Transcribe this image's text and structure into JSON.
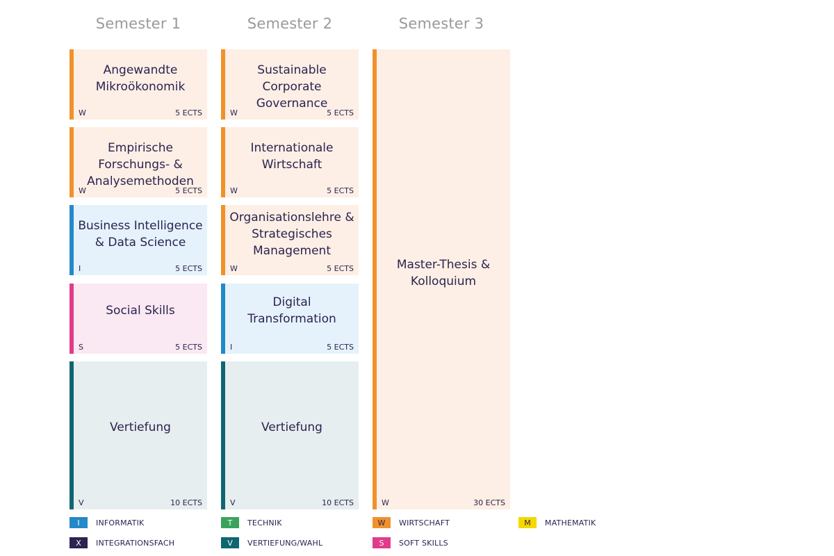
{
  "semesters": [
    "Semester 1",
    "Semester 2",
    "Semester 3"
  ],
  "category_colors": {
    "W": {
      "bar": "#f0922b",
      "bg": "#fdefe5"
    },
    "I": {
      "bar": "#2389c8",
      "bg": "#e5f2fb"
    },
    "S": {
      "bar": "#e03c8a",
      "bg": "#fae8f2"
    },
    "V": {
      "bar": "#0f6670",
      "bg": "#e7eeef"
    }
  },
  "modules": [
    {
      "semester": 1,
      "title": "Angewandte Mikroökonomik",
      "code": "W",
      "ects": "5 ECTS"
    },
    {
      "semester": 1,
      "title": "Empirische Forschungs- & Analysemethoden",
      "code": "W",
      "ects": "5 ECTS"
    },
    {
      "semester": 1,
      "title": "Business Intelligence & Data Science",
      "code": "I",
      "ects": "5 ECTS"
    },
    {
      "semester": 1,
      "title": "Social Skills",
      "code": "S",
      "ects": "5 ECTS"
    },
    {
      "semester": 1,
      "title": "Vertiefung",
      "code": "V",
      "ects": "10 ECTS"
    },
    {
      "semester": 2,
      "title": "Sustainable Corporate Governance",
      "code": "W",
      "ects": "5 ECTS"
    },
    {
      "semester": 2,
      "title": "Internationale Wirtschaft",
      "code": "W",
      "ects": "5 ECTS"
    },
    {
      "semester": 2,
      "title": "Organisationslehre & Strategisches Management",
      "code": "W",
      "ects": "5 ECTS"
    },
    {
      "semester": 2,
      "title": "Digital Transformation",
      "code": "I",
      "ects": "5 ECTS"
    },
    {
      "semester": 2,
      "title": "Vertiefung",
      "code": "V",
      "ects": "10 ECTS"
    },
    {
      "semester": 3,
      "title": "Master-Thesis & Kolloquium",
      "code": "W",
      "ects": "30 ECTS"
    }
  ],
  "legend": [
    {
      "code": "I",
      "label": "INFORMATIK",
      "color": "#2389c8",
      "text_color": "#ffffff"
    },
    {
      "code": "T",
      "label": "TECHNIK",
      "color": "#3aa35b",
      "text_color": "#ffffff"
    },
    {
      "code": "W",
      "label": "WIRTSCHAFT",
      "color": "#f0922b",
      "text_color": "#2b2350"
    },
    {
      "code": "M",
      "label": "MATHEMATIK",
      "color": "#f5d800",
      "text_color": "#2b2350"
    },
    {
      "code": "X",
      "label": "INTEGRATIONSFACH",
      "color": "#2b2350",
      "text_color": "#ffffff"
    },
    {
      "code": "V",
      "label": "VERTIEFUNG/WAHL",
      "color": "#0f6670",
      "text_color": "#ffffff"
    },
    {
      "code": "S",
      "label": "SOFT SKILLS",
      "color": "#e03c8a",
      "text_color": "#ffffff"
    }
  ]
}
